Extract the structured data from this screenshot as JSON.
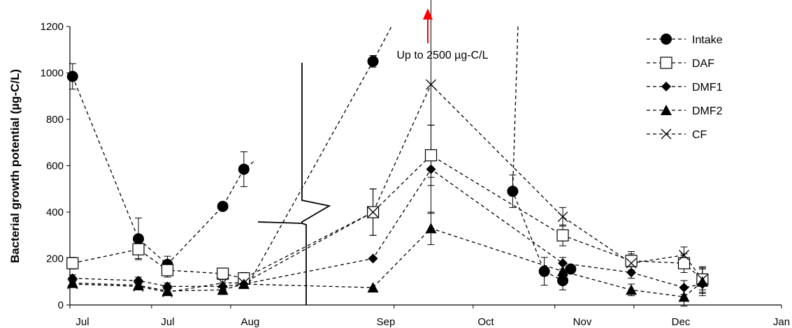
{
  "chart_data": {
    "type": "line",
    "ylabel": "Bacterial growth potential (µg-C/L)",
    "xlabel": "",
    "ylim": [
      0,
      1200
    ],
    "y_ticks": [
      "0",
      "200",
      "400",
      "600",
      "800",
      "1000",
      "1200"
    ],
    "x_tick_labels": [
      "Jul",
      "Jul",
      "Aug",
      "Sep",
      "Oct",
      "Nov",
      "Dec",
      "Jan"
    ],
    "annotation": "Up to 2500 µg-C/L",
    "legend_position": "top-right",
    "grid": false,
    "series": [
      {
        "name": "Intake",
        "marker": "filled-circle",
        "x": [
          1,
          26,
          37,
          58,
          66,
          115,
          168,
          180,
          187
        ],
        "values": [
          985,
          285,
          175,
          425,
          585,
          1050,
          490,
          145,
          105
        ],
        "errors": [
          55,
          90,
          35,
          0,
          75,
          25,
          70,
          60,
          40
        ],
        "extra_points": [
          [
            190,
            155
          ]
        ],
        "connection": "partial"
      },
      {
        "name": "DAF",
        "marker": "open-square",
        "x": [
          1,
          26,
          37,
          58,
          66,
          115,
          137,
          187,
          213,
          233,
          240
        ],
        "values": [
          180,
          240,
          150,
          135,
          115,
          400,
          645,
          300,
          190,
          180,
          110
        ],
        "errors": [
          25,
          40,
          30,
          20,
          25,
          100,
          130,
          45,
          40,
          40,
          45
        ]
      },
      {
        "name": "DMF1",
        "marker": "filled-diamond",
        "x": [
          1,
          26,
          37,
          58,
          66,
          115,
          137,
          187,
          213,
          233,
          240
        ],
        "values": [
          115,
          105,
          80,
          80,
          90,
          200,
          585,
          180,
          140,
          75,
          90
        ],
        "errors": [
          15,
          15,
          15,
          15,
          15,
          0,
          190,
          25,
          25,
          30,
          40
        ]
      },
      {
        "name": "DMF2",
        "marker": "filled-triangle",
        "x": [
          1,
          26,
          37,
          58,
          66,
          115,
          137,
          187,
          213,
          233,
          240
        ],
        "values": [
          95,
          85,
          60,
          65,
          90,
          75,
          330,
          145,
          65,
          35,
          100
        ],
        "errors": [
          20,
          15,
          15,
          20,
          15,
          0,
          70,
          35,
          25,
          40,
          60
        ]
      },
      {
        "name": "CF",
        "marker": "x",
        "x": [
          1,
          26,
          37,
          58,
          66,
          115,
          137,
          187,
          213,
          233,
          240
        ],
        "values": [
          90,
          80,
          55,
          95,
          95,
          400,
          950,
          380,
          180,
          215,
          110
        ],
        "errors": [
          15,
          15,
          15,
          15,
          15,
          100,
          400,
          40,
          40,
          35,
          55
        ]
      }
    ]
  }
}
